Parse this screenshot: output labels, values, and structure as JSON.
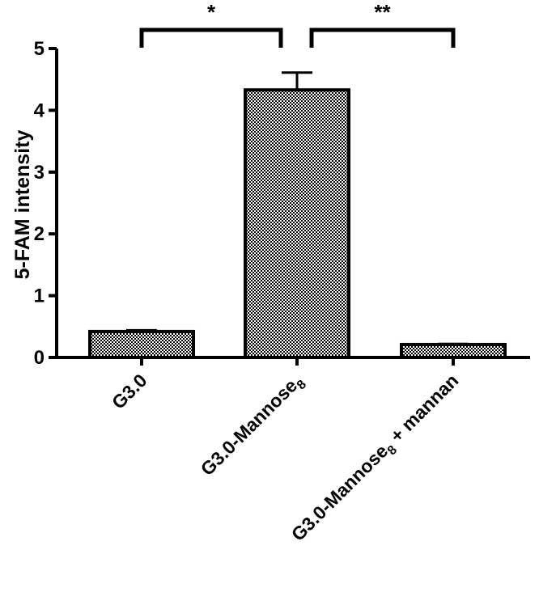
{
  "chart_data": {
    "type": "bar",
    "ylabel": "5-FAM intensity",
    "xlabel": "",
    "ylim": [
      0,
      5
    ],
    "yticks": [
      0,
      1,
      2,
      3,
      4,
      5
    ],
    "grid": false,
    "bar_pattern": "checkerboard",
    "colors": {
      "bar_dark": "#000000",
      "bar_light": "#ffffff",
      "axis": "#000000"
    },
    "categories": [
      {
        "label": "G3.0",
        "subscript": "",
        "suffix": ""
      },
      {
        "label": "G3.0-Mannose",
        "subscript": "8",
        "suffix": ""
      },
      {
        "label": "G3.0-Mannose",
        "subscript": "8",
        "suffix": "+ mannan"
      }
    ],
    "values": [
      0.42,
      4.33,
      0.21
    ],
    "errors": [
      0.02,
      0.28,
      0.01
    ],
    "significance": [
      {
        "from": 0,
        "to": 1,
        "label": "*"
      },
      {
        "from": 1,
        "to": 2,
        "label": "**"
      }
    ]
  }
}
